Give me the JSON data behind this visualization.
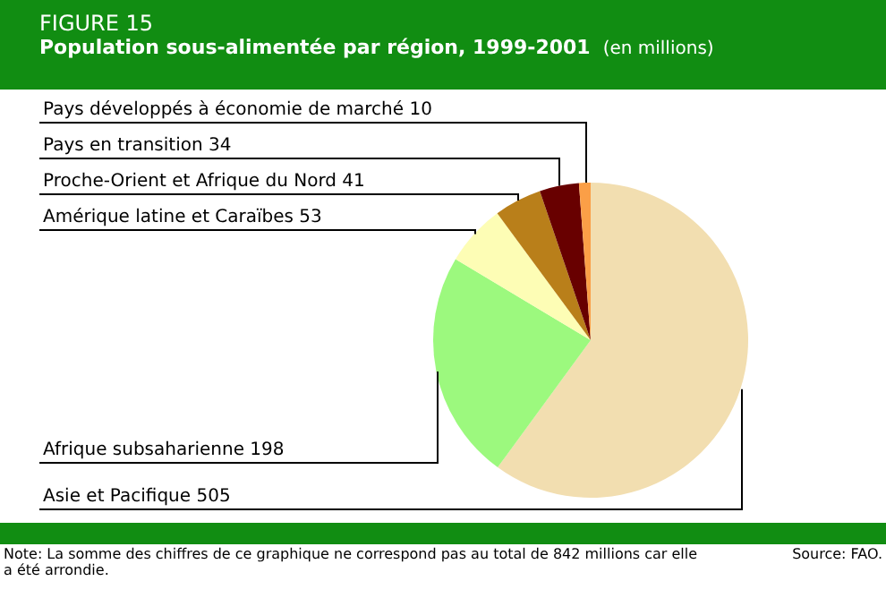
{
  "chart_data": {
    "type": "pie",
    "title": "Population sous-alimentée par région, 1999-2001",
    "subtitle": "(en millions)",
    "categories": [
      "Asie et Pacifique 505",
      "Afrique subsaharienne 198",
      "Amérique latine et Caraïbes 53",
      "Proche-Orient et Afrique du Nord 41",
      "Pays en transition 34",
      "Pays développés à économie de marché 10"
    ],
    "values": [
      505,
      198,
      53,
      41,
      34,
      10
    ],
    "colors": [
      "#f2deb0",
      "#9cf97e",
      "#fdfdb5",
      "#b97f1a",
      "#680000",
      "#fb9f47"
    ],
    "legend": false,
    "annotations": [
      "FIGURE 15",
      "Note: La somme des chiffres de ce graphique ne correspond pas au total de 842 millions car elle a été arrondie.",
      "Source: FAO."
    ]
  }
}
